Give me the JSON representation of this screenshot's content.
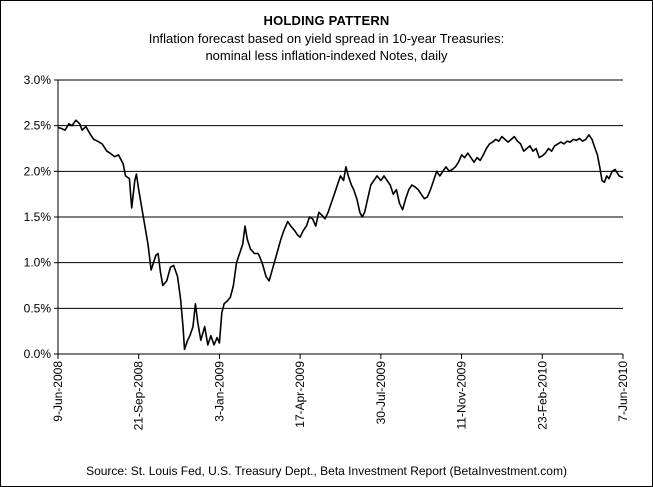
{
  "chart_data": {
    "type": "line",
    "title": "HOLDING PATTERN",
    "subtitle_lines": [
      "Inflation forecast based on yield spread in 10-year Treasuries:",
      "nominal less inflation-indexed Notes, daily"
    ],
    "xlabel": "",
    "ylabel": "",
    "ylim": [
      0,
      3.0
    ],
    "y_ticks": [
      {
        "value": 0.0,
        "label": "0.0%"
      },
      {
        "value": 0.5,
        "label": "0.5%"
      },
      {
        "value": 1.0,
        "label": "1.0%"
      },
      {
        "value": 1.5,
        "label": "1.5%"
      },
      {
        "value": 2.0,
        "label": "2.0%"
      },
      {
        "value": 2.5,
        "label": "2.5%"
      },
      {
        "value": 3.0,
        "label": "3.0%"
      }
    ],
    "x_ticks": [
      "9-Jun-2008",
      "21-Sep-2008",
      "3-Jan-2009",
      "17-Apr-2009",
      "30-Jul-2009",
      "11-Nov-2009",
      "23-Feb-2010",
      "7-Jun-2010"
    ],
    "grid": {
      "horizontal": true,
      "vertical": false
    },
    "line_color": "#000000",
    "source": "Source: St. Louis Fed, U.S. Treasury Dept., Beta Investment Report (BetaInvestment.com)",
    "series": [
      {
        "points": [
          [
            "2008-06-09",
            2.48
          ],
          [
            "2008-06-13",
            2.47
          ],
          [
            "2008-06-18",
            2.45
          ],
          [
            "2008-06-23",
            2.52
          ],
          [
            "2008-06-27",
            2.5
          ],
          [
            "2008-07-02",
            2.56
          ],
          [
            "2008-07-07",
            2.52
          ],
          [
            "2008-07-10",
            2.45
          ],
          [
            "2008-07-15",
            2.49
          ],
          [
            "2008-07-21",
            2.4
          ],
          [
            "2008-07-25",
            2.35
          ],
          [
            "2008-07-30",
            2.33
          ],
          [
            "2008-08-05",
            2.3
          ],
          [
            "2008-08-11",
            2.22
          ],
          [
            "2008-08-15",
            2.2
          ],
          [
            "2008-08-21",
            2.16
          ],
          [
            "2008-08-26",
            2.18
          ],
          [
            "2008-09-01",
            2.08
          ],
          [
            "2008-09-04",
            1.95
          ],
          [
            "2008-09-09",
            1.92
          ],
          [
            "2008-09-12",
            1.6
          ],
          [
            "2008-09-16",
            1.9
          ],
          [
            "2008-09-18",
            1.97
          ],
          [
            "2008-09-21",
            1.8
          ],
          [
            "2008-09-24",
            1.65
          ],
          [
            "2008-09-29",
            1.4
          ],
          [
            "2008-10-03",
            1.2
          ],
          [
            "2008-10-07",
            0.92
          ],
          [
            "2008-10-10",
            1.0
          ],
          [
            "2008-10-13",
            1.08
          ],
          [
            "2008-10-16",
            1.1
          ],
          [
            "2008-10-19",
            0.9
          ],
          [
            "2008-10-22",
            0.75
          ],
          [
            "2008-10-27",
            0.8
          ],
          [
            "2008-11-01",
            0.95
          ],
          [
            "2008-11-05",
            0.97
          ],
          [
            "2008-11-10",
            0.85
          ],
          [
            "2008-11-14",
            0.6
          ],
          [
            "2008-11-17",
            0.3
          ],
          [
            "2008-11-19",
            0.05
          ],
          [
            "2008-11-23",
            0.15
          ],
          [
            "2008-11-26",
            0.2
          ],
          [
            "2008-11-30",
            0.3
          ],
          [
            "2008-12-03",
            0.55
          ],
          [
            "2008-12-06",
            0.35
          ],
          [
            "2008-12-10",
            0.15
          ],
          [
            "2008-12-15",
            0.3
          ],
          [
            "2008-12-19",
            0.1
          ],
          [
            "2008-12-23",
            0.2
          ],
          [
            "2008-12-27",
            0.1
          ],
          [
            "2008-12-31",
            0.18
          ],
          [
            "2009-01-03",
            0.12
          ],
          [
            "2009-01-06",
            0.45
          ],
          [
            "2009-01-09",
            0.55
          ],
          [
            "2009-01-13",
            0.58
          ],
          [
            "2009-01-17",
            0.62
          ],
          [
            "2009-01-21",
            0.75
          ],
          [
            "2009-01-25",
            1.0
          ],
          [
            "2009-01-29",
            1.1
          ],
          [
            "2009-02-02",
            1.2
          ],
          [
            "2009-02-05",
            1.4
          ],
          [
            "2009-02-08",
            1.25
          ],
          [
            "2009-02-12",
            1.15
          ],
          [
            "2009-02-17",
            1.1
          ],
          [
            "2009-02-22",
            1.1
          ],
          [
            "2009-02-27",
            1.0
          ],
          [
            "2009-03-04",
            0.85
          ],
          [
            "2009-03-08",
            0.8
          ],
          [
            "2009-03-13",
            0.95
          ],
          [
            "2009-03-18",
            1.1
          ],
          [
            "2009-03-23",
            1.25
          ],
          [
            "2009-03-27",
            1.35
          ],
          [
            "2009-04-01",
            1.45
          ],
          [
            "2009-04-05",
            1.4
          ],
          [
            "2009-04-10",
            1.35
          ],
          [
            "2009-04-14",
            1.3
          ],
          [
            "2009-04-17",
            1.28
          ],
          [
            "2009-04-21",
            1.35
          ],
          [
            "2009-04-25",
            1.4
          ],
          [
            "2009-04-29",
            1.5
          ],
          [
            "2009-05-03",
            1.48
          ],
          [
            "2009-05-07",
            1.4
          ],
          [
            "2009-05-11",
            1.55
          ],
          [
            "2009-05-15",
            1.52
          ],
          [
            "2009-05-19",
            1.48
          ],
          [
            "2009-05-23",
            1.55
          ],
          [
            "2009-05-27",
            1.65
          ],
          [
            "2009-05-31",
            1.75
          ],
          [
            "2009-06-04",
            1.85
          ],
          [
            "2009-06-08",
            1.95
          ],
          [
            "2009-06-12",
            1.9
          ],
          [
            "2009-06-15",
            2.05
          ],
          [
            "2009-06-18",
            1.95
          ],
          [
            "2009-06-22",
            1.85
          ],
          [
            "2009-06-25",
            1.8
          ],
          [
            "2009-06-29",
            1.7
          ],
          [
            "2009-07-03",
            1.55
          ],
          [
            "2009-07-06",
            1.5
          ],
          [
            "2009-07-09",
            1.55
          ],
          [
            "2009-07-13",
            1.7
          ],
          [
            "2009-07-17",
            1.85
          ],
          [
            "2009-07-21",
            1.9
          ],
          [
            "2009-07-25",
            1.95
          ],
          [
            "2009-07-30",
            1.9
          ],
          [
            "2009-08-03",
            1.95
          ],
          [
            "2009-08-07",
            1.9
          ],
          [
            "2009-08-11",
            1.85
          ],
          [
            "2009-08-15",
            1.75
          ],
          [
            "2009-08-19",
            1.8
          ],
          [
            "2009-08-23",
            1.65
          ],
          [
            "2009-08-27",
            1.58
          ],
          [
            "2009-08-31",
            1.7
          ],
          [
            "2009-09-04",
            1.8
          ],
          [
            "2009-09-08",
            1.85
          ],
          [
            "2009-09-12",
            1.83
          ],
          [
            "2009-09-16",
            1.8
          ],
          [
            "2009-09-20",
            1.75
          ],
          [
            "2009-09-24",
            1.7
          ],
          [
            "2009-09-28",
            1.72
          ],
          [
            "2009-10-02",
            1.8
          ],
          [
            "2009-10-06",
            1.9
          ],
          [
            "2009-10-10",
            2.0
          ],
          [
            "2009-10-14",
            1.95
          ],
          [
            "2009-10-18",
            2.0
          ],
          [
            "2009-10-22",
            2.05
          ],
          [
            "2009-10-26",
            2.0
          ],
          [
            "2009-10-30",
            2.02
          ],
          [
            "2009-11-03",
            2.05
          ],
          [
            "2009-11-07",
            2.1
          ],
          [
            "2009-11-11",
            2.18
          ],
          [
            "2009-11-15",
            2.15
          ],
          [
            "2009-11-19",
            2.2
          ],
          [
            "2009-11-23",
            2.15
          ],
          [
            "2009-11-27",
            2.1
          ],
          [
            "2009-12-01",
            2.15
          ],
          [
            "2009-12-05",
            2.12
          ],
          [
            "2009-12-09",
            2.18
          ],
          [
            "2009-12-13",
            2.25
          ],
          [
            "2009-12-17",
            2.3
          ],
          [
            "2009-12-21",
            2.32
          ],
          [
            "2009-12-25",
            2.35
          ],
          [
            "2009-12-29",
            2.33
          ],
          [
            "2010-01-02",
            2.38
          ],
          [
            "2010-01-06",
            2.35
          ],
          [
            "2010-01-10",
            2.32
          ],
          [
            "2010-01-14",
            2.35
          ],
          [
            "2010-01-18",
            2.38
          ],
          [
            "2010-01-22",
            2.33
          ],
          [
            "2010-01-26",
            2.3
          ],
          [
            "2010-01-30",
            2.22
          ],
          [
            "2010-02-03",
            2.25
          ],
          [
            "2010-02-07",
            2.28
          ],
          [
            "2010-02-11",
            2.22
          ],
          [
            "2010-02-15",
            2.25
          ],
          [
            "2010-02-19",
            2.15
          ],
          [
            "2010-02-23",
            2.17
          ],
          [
            "2010-02-27",
            2.2
          ],
          [
            "2010-03-03",
            2.25
          ],
          [
            "2010-03-07",
            2.22
          ],
          [
            "2010-03-11",
            2.28
          ],
          [
            "2010-03-15",
            2.3
          ],
          [
            "2010-03-19",
            2.32
          ],
          [
            "2010-03-23",
            2.3
          ],
          [
            "2010-03-27",
            2.33
          ],
          [
            "2010-03-31",
            2.32
          ],
          [
            "2010-04-04",
            2.35
          ],
          [
            "2010-04-08",
            2.34
          ],
          [
            "2010-04-12",
            2.36
          ],
          [
            "2010-04-16",
            2.33
          ],
          [
            "2010-04-20",
            2.35
          ],
          [
            "2010-04-24",
            2.4
          ],
          [
            "2010-04-28",
            2.35
          ],
          [
            "2010-05-02",
            2.25
          ],
          [
            "2010-05-05",
            2.18
          ],
          [
            "2010-05-08",
            2.05
          ],
          [
            "2010-05-11",
            1.9
          ],
          [
            "2010-05-14",
            1.88
          ],
          [
            "2010-05-17",
            1.95
          ],
          [
            "2010-05-20",
            1.92
          ],
          [
            "2010-05-24",
            2.0
          ],
          [
            "2010-05-28",
            2.02
          ],
          [
            "2010-06-02",
            1.95
          ],
          [
            "2010-06-07",
            1.93
          ]
        ]
      }
    ]
  }
}
